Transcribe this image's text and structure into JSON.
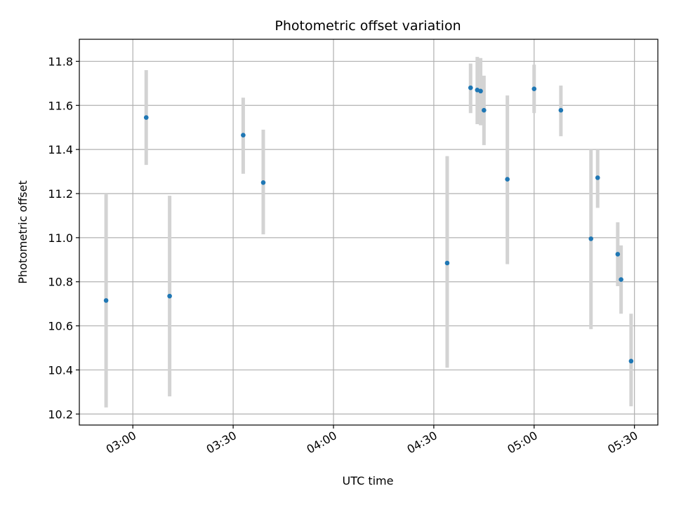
{
  "chart_data": {
    "type": "scatter",
    "title": "Photometric offset variation",
    "xlabel": "UTC time",
    "ylabel": "Photometric offset",
    "x_tick_labels": [
      "03:00",
      "03:30",
      "04:00",
      "04:30",
      "05:00",
      "05:30"
    ],
    "y_tick_labels": [
      "10.2",
      "10.4",
      "10.6",
      "10.8",
      "11.0",
      "11.2",
      "11.4",
      "11.6",
      "11.8"
    ],
    "xlim": [
      "02:44",
      "05:37"
    ],
    "ylim": [
      10.15,
      11.9
    ],
    "grid": true,
    "errorbar_color": "#d3d3d3",
    "marker_color": "#1f77b4",
    "points": [
      {
        "t": "02:52",
        "y": 10.715,
        "lo": 10.23,
        "hi": 11.2
      },
      {
        "t": "03:04",
        "y": 11.545,
        "lo": 11.33,
        "hi": 11.76
      },
      {
        "t": "03:11",
        "y": 10.735,
        "lo": 10.28,
        "hi": 11.19
      },
      {
        "t": "03:33",
        "y": 11.465,
        "lo": 11.29,
        "hi": 11.635
      },
      {
        "t": "03:39",
        "y": 11.25,
        "lo": 11.015,
        "hi": 11.49
      },
      {
        "t": "04:34",
        "y": 10.885,
        "lo": 10.41,
        "hi": 11.37
      },
      {
        "t": "04:41",
        "y": 11.68,
        "lo": 11.565,
        "hi": 11.79
      },
      {
        "t": "04:43",
        "y": 11.67,
        "lo": 11.515,
        "hi": 11.82
      },
      {
        "t": "04:44",
        "y": 11.665,
        "lo": 11.51,
        "hi": 11.815
      },
      {
        "t": "04:45",
        "y": 11.578,
        "lo": 11.42,
        "hi": 11.735
      },
      {
        "t": "04:52",
        "y": 11.265,
        "lo": 10.88,
        "hi": 11.645
      },
      {
        "t": "05:00",
        "y": 11.675,
        "lo": 11.565,
        "hi": 11.785
      },
      {
        "t": "05:08",
        "y": 11.578,
        "lo": 11.46,
        "hi": 11.69
      },
      {
        "t": "05:17",
        "y": 10.995,
        "lo": 10.585,
        "hi": 11.4
      },
      {
        "t": "05:19",
        "y": 11.272,
        "lo": 11.135,
        "hi": 11.4
      },
      {
        "t": "05:25",
        "y": 10.925,
        "lo": 10.78,
        "hi": 11.07
      },
      {
        "t": "05:26",
        "y": 10.81,
        "lo": 10.655,
        "hi": 10.965
      },
      {
        "t": "05:29",
        "y": 10.44,
        "lo": 10.235,
        "hi": 10.655
      }
    ]
  }
}
